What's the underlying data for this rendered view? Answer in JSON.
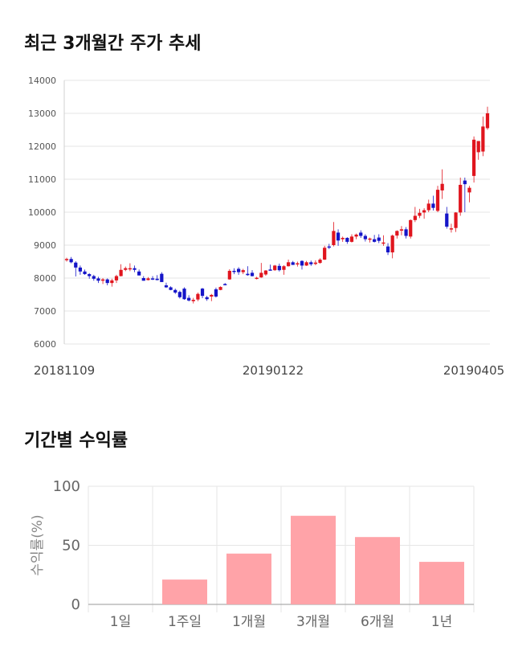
{
  "sections": {
    "price_title": "최근 3개월간 주가 추세",
    "return_title": "기간별 수익률"
  },
  "colors": {
    "up": "#e0151e",
    "down": "#1515c8",
    "bar": "#ffa3a8",
    "grid": "#e6e6e6"
  },
  "chart_data": [
    {
      "type": "candlestick",
      "title": "최근 3개월간 주가 추세",
      "ylim": [
        6000,
        14000
      ],
      "yticks": [
        6000,
        7000,
        8000,
        9000,
        10000,
        11000,
        12000,
        13000,
        14000
      ],
      "xtick_labels": [
        "20181109",
        "20190122",
        "20190405"
      ],
      "grid": "horizontal",
      "series": [
        [
          8560,
          8620,
          8500,
          8580
        ],
        [
          8580,
          8640,
          8450,
          8480
        ],
        [
          8470,
          8510,
          8050,
          8320
        ],
        [
          8320,
          8380,
          8100,
          8200
        ],
        [
          8200,
          8260,
          8100,
          8120
        ],
        [
          8120,
          8150,
          7980,
          8060
        ],
        [
          8060,
          8100,
          7920,
          7980
        ],
        [
          7990,
          8040,
          7850,
          7920
        ],
        [
          7920,
          8000,
          7820,
          7960
        ],
        [
          7960,
          7990,
          7780,
          7850
        ],
        [
          7850,
          7980,
          7740,
          7930
        ],
        [
          7930,
          8100,
          7850,
          8060
        ],
        [
          8060,
          8420,
          8050,
          8250
        ],
        [
          8250,
          8350,
          8210,
          8300
        ],
        [
          8300,
          8450,
          8210,
          8300
        ],
        [
          8300,
          8380,
          8180,
          8250
        ],
        [
          8200,
          8260,
          8080,
          8080
        ],
        [
          8000,
          8060,
          7920,
          7920
        ],
        [
          7940,
          8030,
          7930,
          7990
        ],
        [
          7990,
          8060,
          7940,
          7980
        ],
        [
          7980,
          8090,
          7930,
          7940
        ],
        [
          8130,
          8180,
          7880,
          7880
        ],
        [
          7780,
          7860,
          7700,
          7720
        ],
        [
          7720,
          7750,
          7630,
          7640
        ],
        [
          7640,
          7680,
          7520,
          7560
        ],
        [
          7580,
          7620,
          7380,
          7420
        ],
        [
          7680,
          7720,
          7340,
          7360
        ],
        [
          7400,
          7480,
          7290,
          7320
        ],
        [
          7300,
          7400,
          7230,
          7340
        ],
        [
          7350,
          7560,
          7300,
          7520
        ],
        [
          7680,
          7700,
          7390,
          7460
        ],
        [
          7420,
          7460,
          7310,
          7360
        ],
        [
          7440,
          7520,
          7300,
          7490
        ],
        [
          7660,
          7710,
          7410,
          7440
        ],
        [
          7640,
          7750,
          7630,
          7730
        ],
        [
          7820,
          7850,
          7780,
          7800
        ],
        [
          7960,
          8270,
          7950,
          8220
        ],
        [
          8220,
          8300,
          8120,
          8210
        ],
        [
          8280,
          8330,
          8100,
          8180
        ],
        [
          8180,
          8280,
          8120,
          8240
        ],
        [
          8130,
          8360,
          8070,
          8090
        ],
        [
          8160,
          8240,
          8050,
          8060
        ],
        [
          7980,
          8040,
          7960,
          8010
        ],
        [
          8020,
          8460,
          8010,
          8160
        ],
        [
          8110,
          8240,
          8070,
          8230
        ],
        [
          8260,
          8410,
          8230,
          8240
        ],
        [
          8240,
          8400,
          8220,
          8380
        ],
        [
          8370,
          8440,
          8200,
          8240
        ],
        [
          8250,
          8390,
          8100,
          8360
        ],
        [
          8360,
          8560,
          8350,
          8480
        ],
        [
          8480,
          8520,
          8400,
          8400
        ],
        [
          8420,
          8500,
          8350,
          8450
        ],
        [
          8520,
          8540,
          8260,
          8380
        ],
        [
          8380,
          8520,
          8370,
          8480
        ],
        [
          8480,
          8530,
          8370,
          8420
        ],
        [
          8430,
          8540,
          8390,
          8470
        ],
        [
          8460,
          8600,
          8440,
          8560
        ],
        [
          8560,
          8980,
          8550,
          8920
        ],
        [
          8960,
          9040,
          8880,
          8940
        ],
        [
          9000,
          9700,
          8960,
          9430
        ],
        [
          9380,
          9480,
          8980,
          9140
        ],
        [
          9180,
          9260,
          9100,
          9220
        ],
        [
          9220,
          9240,
          9040,
          9100
        ],
        [
          9100,
          9330,
          9080,
          9260
        ],
        [
          9260,
          9350,
          9180,
          9320
        ],
        [
          9380,
          9450,
          9220,
          9280
        ],
        [
          9280,
          9330,
          9110,
          9180
        ],
        [
          9170,
          9230,
          9080,
          9200
        ],
        [
          9180,
          9310,
          9080,
          9100
        ],
        [
          9230,
          9330,
          9060,
          9130
        ],
        [
          9080,
          9300,
          8980,
          9080
        ],
        [
          8960,
          9060,
          8700,
          8780
        ],
        [
          8780,
          9320,
          8600,
          9290
        ],
        [
          9290,
          9450,
          9200,
          9430
        ],
        [
          9440,
          9580,
          9300,
          9480
        ],
        [
          9480,
          9550,
          9200,
          9280
        ],
        [
          9260,
          9780,
          9200,
          9760
        ],
        [
          9760,
          10160,
          9700,
          9890
        ],
        [
          9890,
          10100,
          9820,
          9980
        ],
        [
          9990,
          10120,
          9800,
          10060
        ],
        [
          10060,
          10380,
          10000,
          10260
        ],
        [
          10260,
          10500,
          10050,
          10130
        ],
        [
          10040,
          10800,
          10000,
          10680
        ],
        [
          10660,
          11300,
          10400,
          10860
        ],
        [
          9960,
          10160,
          9500,
          9560
        ],
        [
          9500,
          9650,
          9380,
          9510
        ],
        [
          9520,
          10000,
          9400,
          9990
        ],
        [
          9990,
          11050,
          9890,
          10830
        ],
        [
          10960,
          11050,
          10000,
          10850
        ],
        [
          10600,
          10800,
          10300,
          10740
        ],
        [
          11100,
          12300,
          10900,
          12200
        ],
        [
          11820,
          12100,
          11590,
          12160
        ],
        [
          11840,
          12900,
          11700,
          12600
        ],
        [
          12550,
          13200,
          12500,
          13000
        ]
      ]
    },
    {
      "type": "bar",
      "ylabel": "수익률(%)",
      "ylim": [
        0,
        100
      ],
      "yticks": [
        0,
        50,
        100
      ],
      "categories": [
        "1일",
        "1주일",
        "1개월",
        "3개월",
        "6개월",
        "1년"
      ],
      "values": [
        0,
        21,
        43,
        75,
        57,
        36
      ],
      "grid": "both"
    }
  ]
}
